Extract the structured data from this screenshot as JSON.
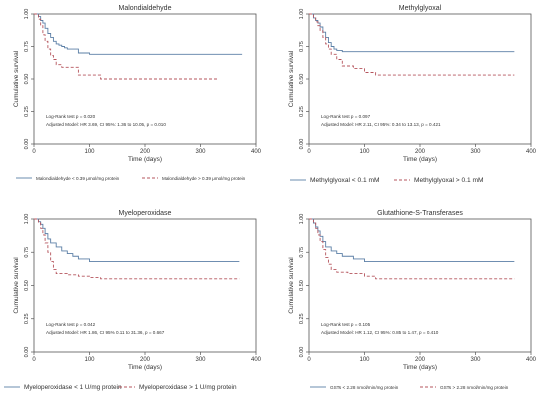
{
  "chart_data": [
    {
      "type": "line",
      "title": "Malondialdehyde",
      "xlabel": "Time (days)",
      "ylabel": "Cumulative survival",
      "xlim": [
        0,
        400
      ],
      "ylim": [
        0,
        1
      ],
      "xticks": [
        "0",
        "100",
        "200",
        "300",
        "400"
      ],
      "yticks": [
        "0.00",
        "0.25",
        "0.50",
        "0.75",
        "1.00"
      ],
      "grid": false,
      "legend_position": "bottom",
      "stats": [
        "Log-Rank test p = 0.020",
        "Adjusted Model: HR 3.69, CI 95%: 1.36 to 10.05, p = 0.010"
      ],
      "series": [
        {
          "name": "Malondialdehyde < 0.39 μmol/mg protein",
          "style": "solid",
          "color": "#5b7fa6",
          "x": [
            0,
            8,
            12,
            16,
            20,
            25,
            30,
            35,
            40,
            45,
            50,
            55,
            60,
            70,
            80,
            100,
            375
          ],
          "y": [
            1.0,
            0.98,
            0.95,
            0.93,
            0.89,
            0.85,
            0.82,
            0.79,
            0.77,
            0.76,
            0.75,
            0.74,
            0.73,
            0.73,
            0.7,
            0.69,
            0.69
          ]
        },
        {
          "name": "Malondialdehyde > 0.39 μmol/mg protein",
          "style": "dashed",
          "color": "#b5545c",
          "x": [
            0,
            8,
            12,
            16,
            20,
            25,
            30,
            35,
            40,
            50,
            60,
            80,
            100,
            120,
            330
          ],
          "y": [
            1.0,
            0.96,
            0.91,
            0.84,
            0.79,
            0.73,
            0.68,
            0.65,
            0.61,
            0.59,
            0.59,
            0.53,
            0.53,
            0.5,
            0.5
          ]
        }
      ]
    },
    {
      "type": "line",
      "title": "Methylglyoxal",
      "xlabel": "Time (days)",
      "ylabel": "Cumulative survival",
      "xlim": [
        0,
        400
      ],
      "ylim": [
        0,
        1
      ],
      "xticks": [
        "0",
        "100",
        "200",
        "300",
        "400"
      ],
      "yticks": [
        "0.00",
        "0.25",
        "0.50",
        "0.75",
        "1.00"
      ],
      "grid": false,
      "legend_position": "bottom",
      "stats": [
        "Log-Rank test p = 0.097",
        "Adjusted Model: HR 2.11, CI 95%: 0.34 to 13.13, p = 0.421"
      ],
      "series": [
        {
          "name": "Methylglyoxal < 0.1 mM",
          "style": "solid",
          "color": "#5b7fa6",
          "x": [
            0,
            8,
            12,
            16,
            20,
            25,
            30,
            35,
            40,
            45,
            50,
            60,
            80,
            370
          ],
          "y": [
            1.0,
            0.97,
            0.95,
            0.93,
            0.9,
            0.86,
            0.82,
            0.78,
            0.75,
            0.73,
            0.72,
            0.71,
            0.71,
            0.71
          ]
        },
        {
          "name": "Methylglyoxal > 0.1 mM",
          "style": "dashed",
          "color": "#b5545c",
          "x": [
            0,
            8,
            12,
            16,
            20,
            25,
            30,
            35,
            40,
            50,
            60,
            80,
            100,
            120,
            370
          ],
          "y": [
            1.0,
            0.97,
            0.94,
            0.91,
            0.87,
            0.82,
            0.77,
            0.73,
            0.69,
            0.65,
            0.6,
            0.58,
            0.55,
            0.53,
            0.53
          ]
        }
      ]
    },
    {
      "type": "line",
      "title": "Myeloperoxidase",
      "xlabel": "Time (days)",
      "ylabel": "Cumulative survival",
      "xlim": [
        0,
        400
      ],
      "ylim": [
        0,
        1
      ],
      "xticks": [
        "0",
        "100",
        "200",
        "300",
        "400"
      ],
      "yticks": [
        "0.00",
        "0.25",
        "0.50",
        "0.75",
        "1.00"
      ],
      "grid": false,
      "legend_position": "bottom",
      "stats": [
        "Log-Rank test p = 0.042",
        "Adjusted Model: HR 1.86, CI 95% 0.11 to 31.36, p = 0.667"
      ],
      "series": [
        {
          "name": "Myeloperoxidase < 1 U/mg protein",
          "style": "solid",
          "color": "#5b7fa6",
          "x": [
            0,
            8,
            12,
            16,
            20,
            25,
            30,
            40,
            50,
            60,
            70,
            80,
            100,
            370
          ],
          "y": [
            1.0,
            0.98,
            0.96,
            0.93,
            0.89,
            0.85,
            0.82,
            0.79,
            0.76,
            0.74,
            0.72,
            0.7,
            0.68,
            0.68
          ]
        },
        {
          "name": "Myeloperoxidase > 1 U/mg protein",
          "style": "dashed",
          "color": "#b5545c",
          "x": [
            0,
            8,
            12,
            16,
            20,
            25,
            30,
            35,
            40,
            60,
            80,
            100,
            120,
            370
          ],
          "y": [
            1.0,
            0.97,
            0.93,
            0.88,
            0.82,
            0.75,
            0.68,
            0.62,
            0.59,
            0.58,
            0.57,
            0.56,
            0.55,
            0.55
          ]
        }
      ]
    },
    {
      "type": "line",
      "title": "Glutathione-S-Transferases",
      "xlabel": "Time (days)",
      "ylabel": "Cumulative survival",
      "xlim": [
        0,
        400
      ],
      "ylim": [
        0,
        1
      ],
      "xticks": [
        "0",
        "100",
        "200",
        "300",
        "400"
      ],
      "yticks": [
        "0.00",
        "0.25",
        "0.50",
        "0.75",
        "1.00"
      ],
      "grid": false,
      "legend_position": "bottom",
      "stats": [
        "Log-Rank test p = 0.105",
        "Adjusted Model: HR 1.12, CI 95%: 0.85 to 1.47, p = 0.410"
      ],
      "series": [
        {
          "name": "GSTs < 2.28 nmol/min/mg protein",
          "style": "solid",
          "color": "#5b7fa6",
          "x": [
            0,
            8,
            12,
            16,
            20,
            25,
            30,
            40,
            50,
            60,
            80,
            100,
            370
          ],
          "y": [
            1.0,
            0.97,
            0.94,
            0.91,
            0.87,
            0.83,
            0.79,
            0.76,
            0.74,
            0.72,
            0.7,
            0.68,
            0.68
          ]
        },
        {
          "name": "GSTs > 2.28 nmol/min/mg protein",
          "style": "dashed",
          "color": "#b5545c",
          "x": [
            0,
            8,
            12,
            16,
            20,
            25,
            30,
            35,
            40,
            50,
            70,
            100,
            120,
            370
          ],
          "y": [
            1.0,
            0.97,
            0.93,
            0.88,
            0.83,
            0.77,
            0.71,
            0.66,
            0.62,
            0.6,
            0.59,
            0.57,
            0.55,
            0.55
          ]
        }
      ]
    }
  ]
}
